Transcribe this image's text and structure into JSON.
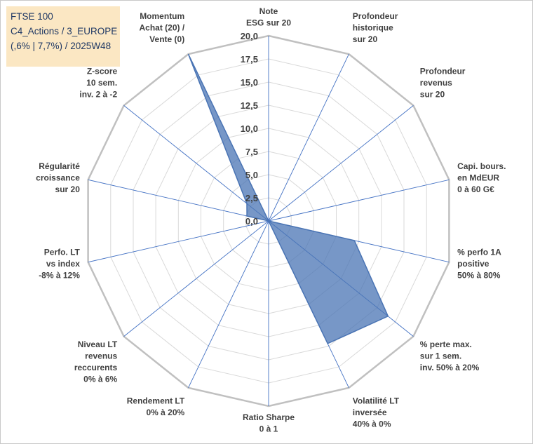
{
  "info_box": {
    "line1": "FTSE 100",
    "line2": "C4_Actions / 3_EUROPE",
    "line3": "(,6% | 7,7%) / 2025W48"
  },
  "chart_data": {
    "type": "radar",
    "title": "",
    "rlim": [
      0,
      20
    ],
    "ticks": [
      "0,0",
      "2,5",
      "5,0",
      "7,5",
      "10,0",
      "12,5",
      "15,0",
      "17,5",
      "20,0"
    ],
    "grid": true,
    "axes": [
      [
        "Note",
        "ESG sur 20"
      ],
      [
        "Profondeur",
        "historique",
        "sur 20"
      ],
      [
        "Profondeur",
        "revenus",
        "sur 20"
      ],
      [
        "Capi. bours.",
        "en MdEUR",
        "0 à 60 G€"
      ],
      [
        "% perfo 1A",
        "positive",
        "50% à 80%"
      ],
      [
        "% perte max.",
        "sur 1 sem.",
        "inv. 50% à 20%"
      ],
      [
        "Volatilité LT",
        "inversée",
        "40% à 0%"
      ],
      [
        "Ratio Sharpe",
        "0 à 1"
      ],
      [
        "Rendement LT",
        "0% à 20%"
      ],
      [
        "Niveau LT",
        "revenus",
        "reccurents",
        "0% à 6%"
      ],
      [
        "Perfo. LT",
        "vs index",
        "-8% à 12%"
      ],
      [
        "Régularité",
        "croissance",
        "sur 20"
      ],
      [
        "Z-score",
        "10 sem.",
        "inv. 2 à -2"
      ],
      [
        "Momentum",
        "Achat (20) /",
        "Vente (0)"
      ]
    ],
    "series": [
      {
        "color": "#4a74b4",
        "values": [
          0,
          0,
          0,
          0,
          9.5,
          16.5,
          14.7,
          0,
          0,
          0,
          0,
          2.4,
          3.0,
          20.0
        ]
      }
    ],
    "colors": {
      "grid": "#d9d9d9",
      "outer_ring": "#c0c0c0",
      "spoke": "#4472c4",
      "fill": "#4a74b4"
    }
  }
}
